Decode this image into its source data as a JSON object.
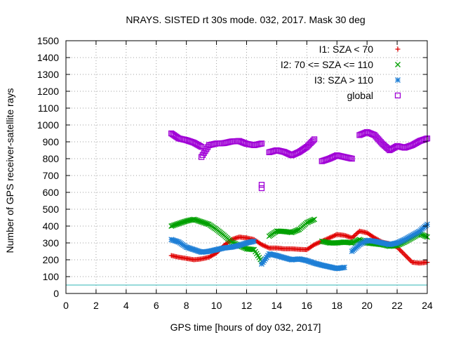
{
  "chart_data": {
    "type": "scatter",
    "title": "NRAYS. SISTED rt 30s mode. 032, 2017. Mask 30 deg",
    "xlabel": "GPS time [hours of doy 032, 2017]",
    "ylabel": "Number of GPS receiver-satellite rays",
    "xlim": [
      0,
      24
    ],
    "ylim": [
      0,
      1500
    ],
    "xticks": [
      0,
      2,
      4,
      6,
      8,
      10,
      12,
      14,
      16,
      18,
      20,
      22,
      24
    ],
    "yticks": [
      0,
      100,
      200,
      300,
      400,
      500,
      600,
      700,
      800,
      900,
      1000,
      1100,
      1200,
      1300,
      1400,
      1500
    ],
    "grid": true,
    "legend_position": "top-right",
    "reference_line": {
      "y": 50,
      "color": "#2fb6b6"
    },
    "series": [
      {
        "name": "I1: SZA < 70",
        "marker": "plus",
        "color": "#e00000",
        "points": [
          [
            7.0,
            225
          ],
          [
            7.5,
            215
          ],
          [
            8.0,
            208
          ],
          [
            8.5,
            200
          ],
          [
            9.0,
            205
          ],
          [
            9.5,
            215
          ],
          [
            10.0,
            240
          ],
          [
            10.5,
            285
          ],
          [
            11.0,
            320
          ],
          [
            11.5,
            335
          ],
          [
            12.0,
            330
          ],
          [
            12.5,
            320
          ],
          [
            13.0,
            290
          ],
          [
            13.5,
            270
          ],
          [
            14.0,
            270
          ],
          [
            14.5,
            265
          ],
          [
            15.0,
            265
          ],
          [
            15.5,
            262
          ],
          [
            16.0,
            260
          ],
          [
            16.5,
            290
          ],
          [
            17.0,
            310
          ],
          [
            17.5,
            330
          ],
          [
            18.0,
            350
          ],
          [
            18.5,
            345
          ],
          [
            19.0,
            330
          ],
          [
            19.5,
            370
          ],
          [
            20.0,
            360
          ],
          [
            20.5,
            330
          ],
          [
            21.0,
            305
          ],
          [
            21.5,
            295
          ],
          [
            22.0,
            275
          ],
          [
            22.5,
            230
          ],
          [
            23.0,
            185
          ],
          [
            23.5,
            180
          ],
          [
            24.0,
            185
          ]
        ]
      },
      {
        "name": "I2: 70 <= SZA <= 110",
        "marker": "cross",
        "color": "#00a000",
        "points": [
          [
            7.0,
            400
          ],
          [
            7.5,
            415
          ],
          [
            8.0,
            430
          ],
          [
            8.5,
            440
          ],
          [
            9.0,
            425
          ],
          [
            9.5,
            410
          ],
          [
            10.0,
            380
          ],
          [
            10.5,
            345
          ],
          [
            11.0,
            305
          ],
          [
            11.5,
            285
          ],
          [
            12.0,
            265
          ],
          [
            12.5,
            260
          ],
          [
            13.0,
            190
          ],
          [
            13.5,
            340
          ],
          [
            14.0,
            370
          ],
          [
            14.5,
            368
          ],
          [
            15.0,
            362
          ],
          [
            15.5,
            380
          ],
          [
            16.0,
            420
          ],
          [
            16.5,
            440
          ],
          [
            17.0,
            310
          ],
          [
            17.5,
            300
          ],
          [
            18.0,
            300
          ],
          [
            18.5,
            305
          ],
          [
            19.0,
            300
          ],
          [
            19.5,
            320
          ],
          [
            20.0,
            300
          ],
          [
            20.5,
            295
          ],
          [
            21.0,
            290
          ],
          [
            21.5,
            280
          ],
          [
            22.0,
            285
          ],
          [
            22.5,
            305
          ],
          [
            23.0,
            330
          ],
          [
            23.5,
            355
          ],
          [
            24.0,
            335
          ]
        ]
      },
      {
        "name": "I3: SZA > 110",
        "marker": "star",
        "color": "#1e7fd6",
        "points": [
          [
            7.0,
            320
          ],
          [
            7.5,
            305
          ],
          [
            8.0,
            275
          ],
          [
            8.5,
            260
          ],
          [
            9.0,
            245
          ],
          [
            9.5,
            250
          ],
          [
            10.0,
            260
          ],
          [
            10.5,
            270
          ],
          [
            11.0,
            275
          ],
          [
            11.5,
            285
          ],
          [
            12.0,
            300
          ],
          [
            12.5,
            310
          ],
          [
            13.0,
            175
          ],
          [
            13.5,
            235
          ],
          [
            14.0,
            225
          ],
          [
            14.5,
            212
          ],
          [
            15.0,
            200
          ],
          [
            15.5,
            205
          ],
          [
            16.0,
            195
          ],
          [
            16.5,
            180
          ],
          [
            17.0,
            168
          ],
          [
            17.5,
            158
          ],
          [
            18.0,
            148
          ],
          [
            18.5,
            155
          ],
          [
            19.0,
            250
          ],
          [
            19.5,
            290
          ],
          [
            20.0,
            315
          ],
          [
            20.5,
            310
          ],
          [
            21.0,
            300
          ],
          [
            21.5,
            290
          ],
          [
            22.0,
            300
          ],
          [
            22.5,
            320
          ],
          [
            23.0,
            345
          ],
          [
            23.5,
            370
          ],
          [
            24.0,
            410
          ]
        ]
      },
      {
        "name": "global",
        "marker": "square",
        "color": "#a000d6",
        "points": [
          [
            7.0,
            950
          ],
          [
            7.5,
            920
          ],
          [
            8.0,
            910
          ],
          [
            8.5,
            895
          ],
          [
            9.0,
            870
          ],
          [
            9.0,
            810
          ],
          [
            9.5,
            880
          ],
          [
            10.0,
            890
          ],
          [
            10.5,
            892
          ],
          [
            11.0,
            902
          ],
          [
            11.5,
            905
          ],
          [
            12.0,
            888
          ],
          [
            12.5,
            880
          ],
          [
            13.0,
            890
          ],
          [
            13.0,
            645
          ],
          [
            13.0,
            625
          ],
          [
            13.5,
            838
          ],
          [
            14.0,
            850
          ],
          [
            14.5,
            840
          ],
          [
            15.0,
            820
          ],
          [
            15.5,
            840
          ],
          [
            16.0,
            870
          ],
          [
            16.5,
            915
          ],
          [
            17.0,
            785
          ],
          [
            17.5,
            800
          ],
          [
            18.0,
            820
          ],
          [
            18.5,
            810
          ],
          [
            19.0,
            800
          ],
          [
            19.5,
            940
          ],
          [
            20.0,
            958
          ],
          [
            20.5,
            940
          ],
          [
            21.0,
            890
          ],
          [
            21.5,
            850
          ],
          [
            22.0,
            875
          ],
          [
            22.5,
            865
          ],
          [
            23.0,
            880
          ],
          [
            23.5,
            905
          ],
          [
            24.0,
            920
          ]
        ]
      }
    ]
  }
}
